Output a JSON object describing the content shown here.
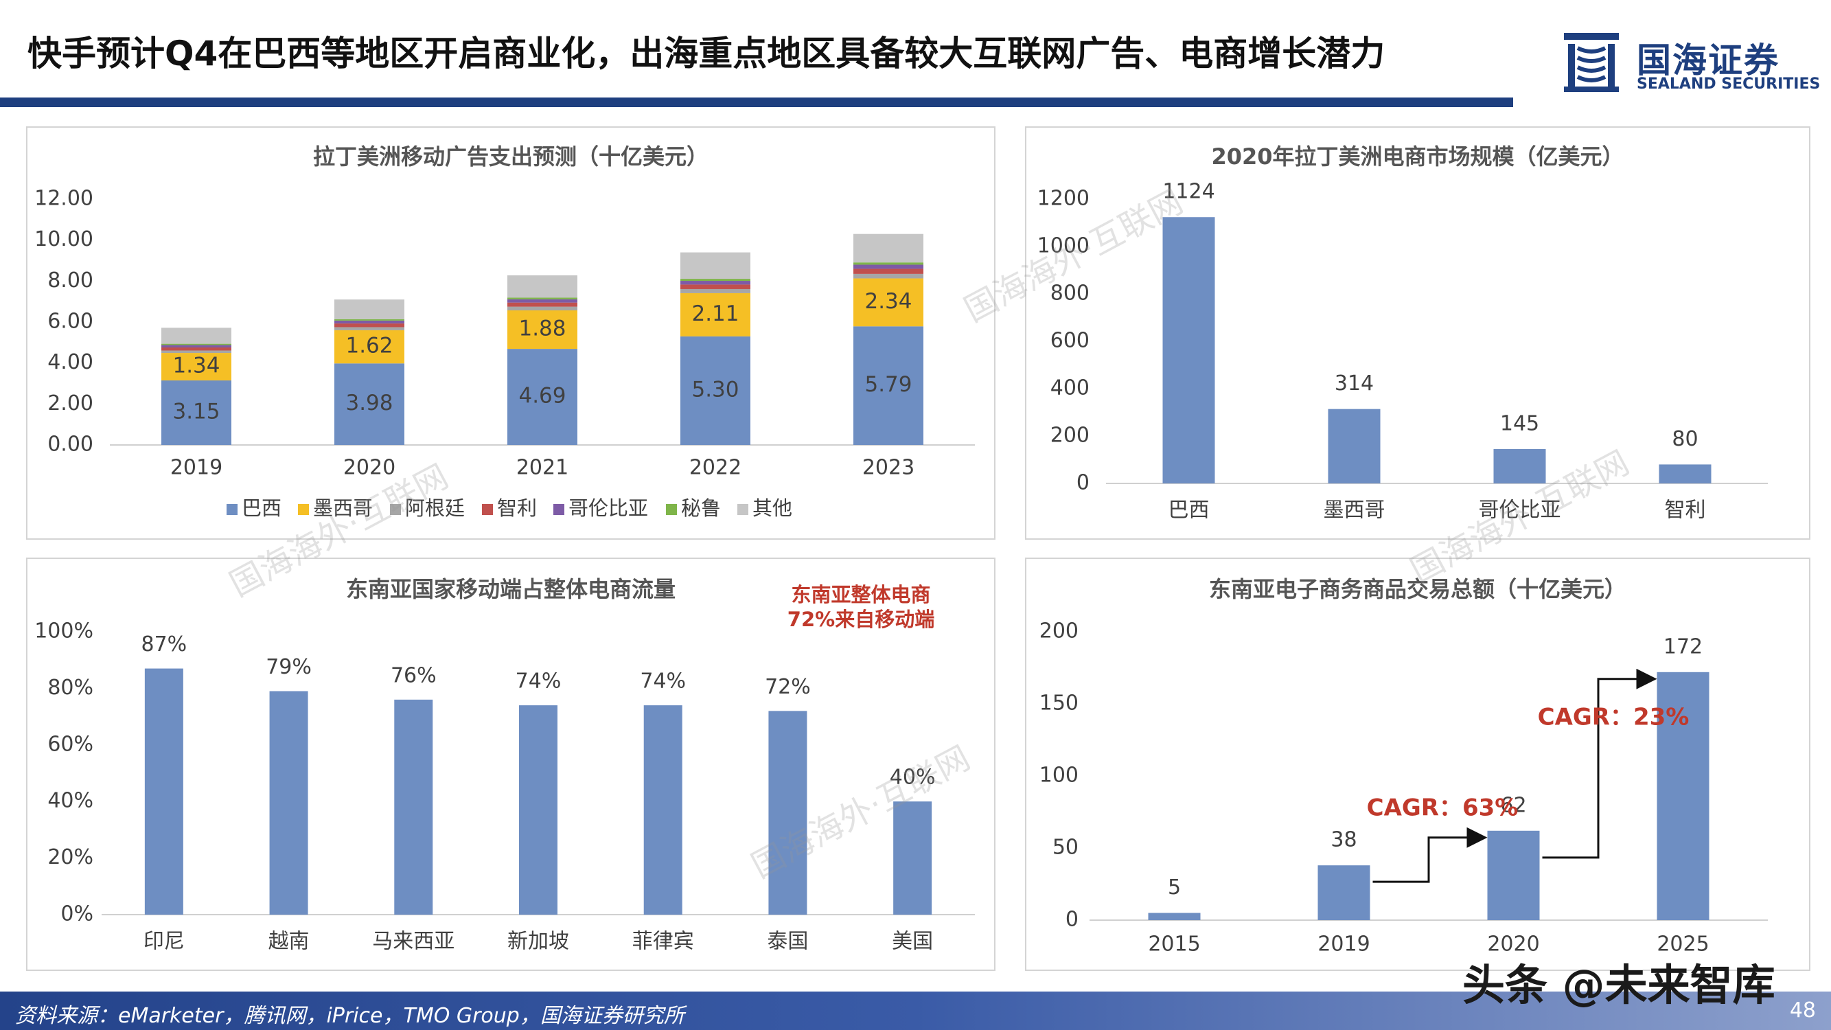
{
  "header": {
    "title": "快手预计Q4在巴西等地区开启商业化，出海重点地区具备较大互联网广告、电商增长潜力",
    "logo_cn": "国海证券",
    "logo_en": "SEALAND SECURITIES"
  },
  "footer": {
    "source": "资料来源：eMarketer，腾讯网，iPrice，TMO Group，国海证券研究所",
    "page": "48"
  },
  "watermarks": {
    "site": "国海海外·互联网",
    "corner": "头条 @未来智库"
  },
  "colors": {
    "blue": "#6e8ec2",
    "yellow": "#f5bf25",
    "gray": "#a6a6a6",
    "red": "#c0504d",
    "purple": "#7d5ba6",
    "green": "#7fb54a",
    "lightgray": "#c6c6c6",
    "brand": "#1e3f7f",
    "annotation_red": "#c0392b"
  },
  "chart_data": [
    {
      "type": "bar",
      "stacked": true,
      "title": "拉丁美洲移动广告支出预测（十亿美元）",
      "categories": [
        "2019",
        "2020",
        "2021",
        "2022",
        "2023"
      ],
      "ylim": [
        0,
        12
      ],
      "yticks": [
        "0.00",
        "2.00",
        "4.00",
        "6.00",
        "8.00",
        "10.00",
        "12.00"
      ],
      "legend_position": "bottom",
      "series": [
        {
          "name": "巴西",
          "values": [
            3.15,
            3.98,
            4.69,
            5.3,
            5.79
          ],
          "labels": [
            "3.15",
            "3.98",
            "4.69",
            "5.30",
            "5.79"
          ]
        },
        {
          "name": "墨西哥",
          "values": [
            1.34,
            1.62,
            1.88,
            2.11,
            2.34
          ],
          "labels": [
            "1.34",
            "1.62",
            "1.88",
            "2.11",
            "2.34"
          ]
        },
        {
          "name": "阿根廷",
          "values": [
            0.12,
            0.15,
            0.18,
            0.2,
            0.22
          ]
        },
        {
          "name": "智利",
          "values": [
            0.15,
            0.18,
            0.2,
            0.22,
            0.25
          ]
        },
        {
          "name": "哥伦比亚",
          "values": [
            0.12,
            0.14,
            0.16,
            0.18,
            0.2
          ]
        },
        {
          "name": "秘鲁",
          "values": [
            0.06,
            0.07,
            0.08,
            0.1,
            0.11
          ]
        },
        {
          "name": "其他",
          "values": [
            0.78,
            0.96,
            1.09,
            1.29,
            1.39
          ]
        }
      ]
    },
    {
      "type": "bar",
      "title": "2020年拉丁美洲电商市场规模（亿美元）",
      "categories": [
        "巴西",
        "墨西哥",
        "哥伦比亚",
        "智利"
      ],
      "values": [
        1124,
        314,
        145,
        80
      ],
      "labels": [
        "1124",
        "314",
        "145",
        "80"
      ],
      "ylim": [
        0,
        1200
      ],
      "yticks": [
        "0",
        "200",
        "400",
        "600",
        "800",
        "1000",
        "1200"
      ]
    },
    {
      "type": "bar",
      "title": "东南亚国家移动端占整体电商流量",
      "categories": [
        "印尼",
        "越南",
        "马来西亚",
        "新加坡",
        "菲律宾",
        "泰国",
        "美国"
      ],
      "values": [
        87,
        79,
        76,
        74,
        74,
        72,
        40
      ],
      "labels": [
        "87%",
        "79%",
        "76%",
        "74%",
        "74%",
        "72%",
        "40%"
      ],
      "ylim": [
        0,
        100
      ],
      "yticks": [
        "0%",
        "20%",
        "40%",
        "60%",
        "80%",
        "100%"
      ],
      "annotation": [
        "东南亚整体电商",
        "72%来自移动端"
      ]
    },
    {
      "type": "bar",
      "title": "东南亚电子商务商品交易总额（十亿美元）",
      "categories": [
        "2015",
        "2019",
        "2020",
        "2025"
      ],
      "values": [
        5,
        38,
        62,
        172
      ],
      "labels": [
        "5",
        "38",
        "62",
        "172"
      ],
      "ylim": [
        0,
        200
      ],
      "yticks": [
        "0",
        "50",
        "100",
        "150",
        "200"
      ],
      "annotations": [
        "CAGR：63%",
        "CAGR：23%"
      ]
    }
  ]
}
